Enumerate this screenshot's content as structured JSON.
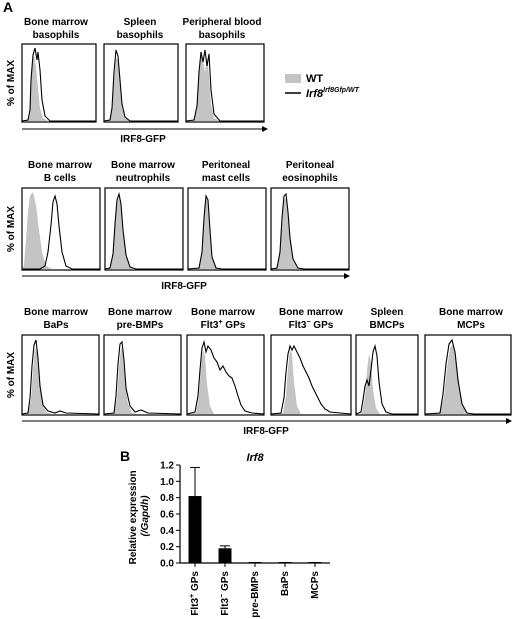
{
  "panel_a": {
    "label": "A",
    "legend": {
      "wt": "WT",
      "reporter_prefix": "Irf8",
      "reporter_sup": "Irf8Gfp/WT"
    },
    "y_axis_label": "% of MAX",
    "x_axis_label": "IRF8-GFP",
    "row1": [
      {
        "line1": "Bone marrow",
        "line2": "basophils"
      },
      {
        "line1": "Spleen",
        "line2": "basophils"
      },
      {
        "line1": "Peripheral blood",
        "line2": "basophils"
      }
    ],
    "row2": [
      {
        "line1": "Bone marrow",
        "line2": "B cells"
      },
      {
        "line1": "Bone marrow",
        "line2": "neutrophils"
      },
      {
        "line1": "Peritoneal",
        "line2": "mast cells"
      },
      {
        "line1": "Peritoneal",
        "line2": "eosinophils"
      }
    ],
    "row3": [
      {
        "line1": "Bone marrow",
        "line2": "BaPs"
      },
      {
        "line1": "Bone marrow",
        "line2": "pre-BMPs"
      },
      {
        "line1": "Bone marrow",
        "line2a": "Flt3",
        "line2sup": "+",
        "line2b": " GPs"
      },
      {
        "line1": "Bone marrow",
        "line2a": "Flt3",
        "line2sup": "−",
        "line2b": " GPs"
      },
      {
        "line1": "Spleen",
        "line2": "BMCPs"
      },
      {
        "line1": "Bone marrow",
        "line2": "MCPs"
      }
    ]
  },
  "panel_b": {
    "label": "B",
    "title": "Irf8",
    "ylabel_line1": "Relative expression",
    "ylabel_line2": "(/Gapdh)",
    "chart_data": {
      "type": "bar",
      "title": "Irf8",
      "categories": [
        "Flt3+ GPs",
        "Flt3− GPs",
        "pre-BMPs",
        "BaPs",
        "MCPs"
      ],
      "values": [
        0.82,
        0.18,
        0.005,
        0.003,
        0.005
      ],
      "errors": [
        0.35,
        0.03,
        0.0,
        0.0,
        0.0
      ],
      "ylabel": "Relative expression (/Gapdh)",
      "ylim": [
        0,
        1.2
      ],
      "yticks": [
        "0.0",
        "0.2",
        "0.4",
        "0.6",
        "0.8",
        "1.0",
        "1.2"
      ]
    },
    "ticks": [
      "0.0",
      "0.2",
      "0.4",
      "0.6",
      "0.8",
      "1.0",
      "1.2"
    ],
    "categories": [
      {
        "a": "Flt3",
        "sup": "+",
        "b": " GPs"
      },
      {
        "a": "Flt3",
        "sup": "−",
        "b": " GPs"
      },
      {
        "a": "pre-BMPs",
        "sup": "",
        "b": ""
      },
      {
        "a": "BaPs",
        "sup": "",
        "b": ""
      },
      {
        "a": "MCPs",
        "sup": "",
        "b": ""
      }
    ]
  }
}
